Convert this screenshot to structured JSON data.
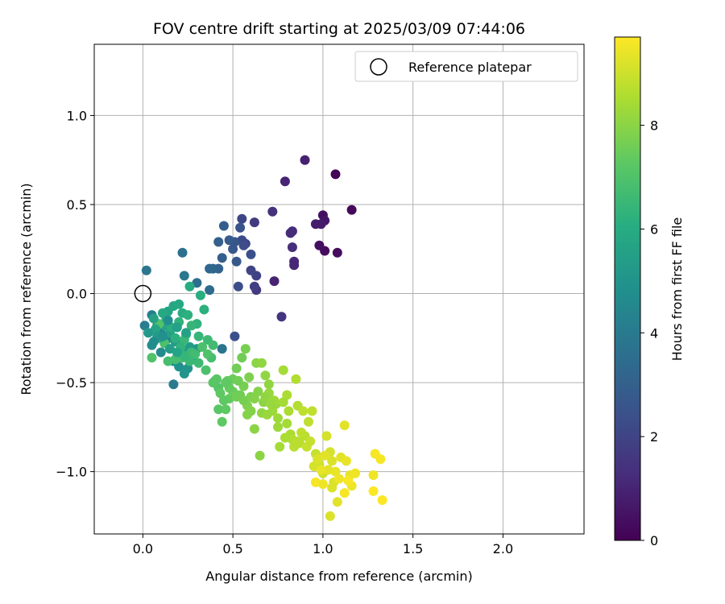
{
  "chart_data": {
    "type": "scatter",
    "title": "FOV centre drift starting at 2025/03/09 07:44:06",
    "xlabel": "Angular distance from reference (arcmin)",
    "ylabel": "Rotation from reference (arcmin)",
    "xlim": [
      -0.27,
      2.45
    ],
    "ylim": [
      -1.35,
      1.4
    ],
    "x_ticks": [
      0.0,
      0.5,
      1.0,
      1.5,
      2.0
    ],
    "x_tick_labels": [
      "0.0",
      "0.5",
      "1.0",
      "1.5",
      "2.0"
    ],
    "y_ticks": [
      -1.0,
      -0.5,
      0.0,
      0.5,
      1.0
    ],
    "y_tick_labels": [
      "−1.0",
      "−0.5",
      "0.0",
      "0.5",
      "1.0"
    ],
    "grid": true,
    "legend": {
      "position": "top-right",
      "entries": [
        "Reference platepar"
      ]
    },
    "reference_point": {
      "x": 0.0,
      "y": 0.0
    },
    "colorbar": {
      "label": "Hours from first FF file",
      "colormap": "viridis",
      "range": [
        0,
        9.7
      ],
      "ticks": [
        0,
        2,
        4,
        6,
        8
      ],
      "tick_labels": [
        "0",
        "2",
        "4",
        "6",
        "8"
      ]
    },
    "points": [
      [
        1.07,
        0.67,
        0.1
      ],
      [
        1.16,
        0.47,
        0.2
      ],
      [
        1.01,
        0.24,
        0.3
      ],
      [
        1.08,
        0.23,
        0.3
      ],
      [
        0.98,
        0.27,
        0.4
      ],
      [
        1.0,
        0.44,
        0.4
      ],
      [
        1.01,
        0.41,
        0.6
      ],
      [
        0.99,
        0.39,
        0.7
      ],
      [
        0.96,
        0.39,
        0.8
      ],
      [
        0.9,
        0.75,
        0.9
      ],
      [
        0.79,
        0.63,
        1.0
      ],
      [
        0.73,
        0.07,
        1.0
      ],
      [
        0.84,
        0.18,
        1.1
      ],
      [
        0.84,
        0.16,
        1.1
      ],
      [
        0.82,
        0.34,
        1.2
      ],
      [
        0.83,
        0.35,
        1.2
      ],
      [
        0.83,
        0.26,
        1.3
      ],
      [
        0.72,
        0.46,
        1.4
      ],
      [
        0.77,
        -0.13,
        1.5
      ],
      [
        0.63,
        0.02,
        1.6
      ],
      [
        0.62,
        0.4,
        1.7
      ],
      [
        0.62,
        0.04,
        1.8
      ],
      [
        0.63,
        0.1,
        1.9
      ],
      [
        0.6,
        0.13,
        2.0
      ],
      [
        0.57,
        0.28,
        2.0
      ],
      [
        0.55,
        0.42,
        2.1
      ],
      [
        0.55,
        0.3,
        2.2
      ],
      [
        0.56,
        0.27,
        2.3
      ],
      [
        0.53,
        0.04,
        2.3
      ],
      [
        0.51,
        -0.24,
        2.4
      ],
      [
        0.6,
        0.22,
        2.4
      ],
      [
        0.54,
        0.37,
        2.5
      ],
      [
        0.51,
        0.29,
        2.6
      ],
      [
        0.5,
        0.25,
        2.7
      ],
      [
        0.52,
        0.18,
        2.7
      ],
      [
        0.48,
        0.3,
        2.8
      ],
      [
        0.45,
        0.38,
        2.9
      ],
      [
        0.42,
        0.29,
        3.0
      ],
      [
        0.44,
        0.2,
        3.0
      ],
      [
        0.42,
        0.14,
        3.1
      ],
      [
        0.39,
        0.14,
        3.2
      ],
      [
        0.37,
        0.14,
        3.3
      ],
      [
        0.37,
        0.02,
        3.4
      ],
      [
        0.3,
        0.06,
        3.5
      ],
      [
        0.22,
        0.23,
        3.6
      ],
      [
        0.44,
        -0.31,
        3.7
      ],
      [
        0.02,
        0.13,
        3.8
      ],
      [
        0.23,
        0.1,
        3.9
      ],
      [
        0.17,
        -0.51,
        4.0
      ],
      [
        0.01,
        -0.18,
        4.1
      ],
      [
        0.05,
        -0.12,
        4.2
      ],
      [
        0.08,
        -0.18,
        4.3
      ],
      [
        0.1,
        -0.22,
        4.4
      ],
      [
        0.13,
        -0.26,
        4.5
      ],
      [
        0.1,
        -0.33,
        4.6
      ],
      [
        0.05,
        -0.29,
        4.7
      ],
      [
        0.17,
        -0.38,
        4.8
      ],
      [
        0.2,
        -0.41,
        4.9
      ],
      [
        0.23,
        -0.45,
        5.0
      ],
      [
        0.25,
        -0.42,
        5.0
      ],
      [
        0.28,
        -0.37,
        5.1
      ],
      [
        0.3,
        -0.31,
        5.2
      ],
      [
        0.26,
        -0.3,
        5.3
      ],
      [
        0.22,
        -0.33,
        5.3
      ],
      [
        0.18,
        -0.27,
        5.4
      ],
      [
        0.15,
        -0.22,
        5.5
      ],
      [
        0.12,
        -0.18,
        5.6
      ],
      [
        0.14,
        -0.1,
        5.7
      ],
      [
        0.17,
        -0.07,
        5.8
      ],
      [
        0.2,
        -0.06,
        5.9
      ],
      [
        0.22,
        -0.11,
        6.0
      ],
      [
        0.26,
        0.04,
        6.0
      ],
      [
        0.32,
        -0.01,
        6.1
      ],
      [
        0.34,
        -0.09,
        6.2
      ],
      [
        0.3,
        -0.17,
        6.3
      ],
      [
        0.27,
        -0.18,
        6.4
      ],
      [
        0.24,
        -0.23,
        6.5
      ],
      [
        0.23,
        -0.26,
        6.5
      ],
      [
        0.27,
        -0.33,
        6.6
      ],
      [
        0.22,
        -0.36,
        6.7
      ],
      [
        0.18,
        -0.37,
        6.8
      ],
      [
        0.14,
        -0.38,
        6.8
      ],
      [
        0.12,
        -0.28,
        6.9
      ],
      [
        0.09,
        -0.17,
        7.0
      ],
      [
        0.05,
        -0.36,
        7.0
      ],
      [
        0.2,
        -0.16,
        6.3
      ],
      [
        0.25,
        -0.12,
        6.2
      ],
      [
        0.31,
        -0.24,
        6.4
      ],
      [
        0.36,
        -0.26,
        6.6
      ],
      [
        0.38,
        -0.36,
        6.8
      ],
      [
        0.4,
        -0.49,
        7.0
      ],
      [
        0.42,
        -0.53,
        7.1
      ],
      [
        0.42,
        -0.65,
        7.2
      ],
      [
        0.44,
        -0.72,
        7.3
      ],
      [
        0.46,
        -0.65,
        7.3
      ],
      [
        0.48,
        -0.59,
        7.4
      ],
      [
        0.5,
        -0.48,
        7.5
      ],
      [
        0.52,
        -0.42,
        7.6
      ],
      [
        0.55,
        -0.36,
        7.6
      ],
      [
        0.57,
        -0.31,
        7.7
      ],
      [
        0.59,
        -0.47,
        7.8
      ],
      [
        0.58,
        -0.63,
        7.8
      ],
      [
        0.6,
        -0.66,
        7.9
      ],
      [
        0.62,
        -0.76,
        8.0
      ],
      [
        0.65,
        -0.91,
        8.0
      ],
      [
        0.63,
        -0.39,
        8.0
      ],
      [
        0.66,
        -0.39,
        8.1
      ],
      [
        0.68,
        -0.46,
        8.1
      ],
      [
        0.7,
        -0.56,
        8.2
      ],
      [
        0.72,
        -0.66,
        8.3
      ],
      [
        0.75,
        -0.7,
        8.3
      ],
      [
        0.76,
        -0.86,
        8.4
      ],
      [
        0.78,
        -0.43,
        8.4
      ],
      [
        0.8,
        -0.57,
        8.5
      ],
      [
        0.82,
        -0.79,
        8.5
      ],
      [
        0.85,
        -0.48,
        8.6
      ],
      [
        0.86,
        -0.63,
        8.6
      ],
      [
        0.87,
        -0.84,
        8.7
      ],
      [
        0.9,
        -0.8,
        8.7
      ],
      [
        0.92,
        -0.72,
        8.8
      ],
      [
        0.94,
        -0.66,
        8.8
      ],
      [
        0.96,
        -0.9,
        8.9
      ],
      [
        0.98,
        -0.96,
        9.0
      ],
      [
        1.0,
        -1.01,
        9.0
      ],
      [
        1.02,
        -0.8,
        9.1
      ],
      [
        1.04,
        -0.89,
        9.1
      ],
      [
        1.05,
        -1.09,
        9.2
      ],
      [
        1.06,
        -1.06,
        9.2
      ],
      [
        1.08,
        -1.17,
        9.3
      ],
      [
        1.1,
        -0.92,
        9.3
      ],
      [
        1.12,
        -0.74,
        9.3
      ],
      [
        1.13,
        -0.94,
        9.4
      ],
      [
        1.15,
        -1.02,
        9.4
      ],
      [
        1.16,
        -1.08,
        9.5
      ],
      [
        1.28,
        -1.02,
        9.5
      ],
      [
        1.29,
        -0.9,
        9.6
      ],
      [
        1.32,
        -0.93,
        9.6
      ],
      [
        1.33,
        -1.16,
        9.7
      ],
      [
        1.28,
        -1.11,
        9.7
      ],
      [
        0.96,
        -1.06,
        9.6
      ],
      [
        1.04,
        -1.25,
        9.2
      ],
      [
        1.18,
        -1.01,
        9.5
      ],
      [
        0.93,
        -0.83,
        8.9
      ],
      [
        0.88,
        -0.78,
        8.8
      ],
      [
        0.83,
        -0.82,
        8.6
      ],
      [
        0.8,
        -0.73,
        8.4
      ],
      [
        0.74,
        -0.62,
        8.2
      ],
      [
        0.7,
        -0.51,
        8.1
      ],
      [
        0.67,
        -0.61,
        8.0
      ],
      [
        0.64,
        -0.55,
        7.9
      ],
      [
        0.6,
        -0.58,
        7.8
      ],
      [
        0.56,
        -0.52,
        7.7
      ],
      [
        0.53,
        -0.49,
        7.6
      ],
      [
        0.5,
        -0.55,
        7.5
      ],
      [
        0.47,
        -0.49,
        7.4
      ],
      [
        0.43,
        -0.56,
        7.3
      ],
      [
        0.39,
        -0.5,
        7.2
      ],
      [
        0.36,
        -0.34,
        7.0
      ],
      [
        0.33,
        -0.3,
        6.9
      ],
      [
        0.29,
        -0.34,
        6.7
      ],
      [
        0.26,
        -0.38,
        6.5
      ],
      [
        0.23,
        -0.35,
        6.4
      ],
      [
        0.21,
        -0.3,
        6.3
      ],
      [
        0.18,
        -0.25,
        6.2
      ],
      [
        0.16,
        -0.19,
        6.1
      ],
      [
        0.13,
        -0.14,
        6.0
      ],
      [
        0.11,
        -0.11,
        5.9
      ],
      [
        0.09,
        -0.25,
        5.8
      ],
      [
        0.07,
        -0.2,
        5.7
      ],
      [
        0.06,
        -0.14,
        5.6
      ],
      [
        0.24,
        -0.22,
        5.6
      ],
      [
        0.19,
        -0.19,
        5.5
      ],
      [
        0.15,
        -0.31,
        5.4
      ],
      [
        0.08,
        -0.24,
        5.3
      ],
      [
        0.03,
        -0.22,
        5.2
      ],
      [
        0.11,
        -0.24,
        4.9
      ],
      [
        0.14,
        -0.15,
        4.8
      ],
      [
        0.06,
        -0.27,
        4.7
      ],
      [
        0.19,
        -0.33,
        5.7
      ],
      [
        0.31,
        -0.39,
        6.6
      ],
      [
        0.35,
        -0.43,
        6.9
      ],
      [
        0.39,
        -0.29,
        6.7
      ],
      [
        0.45,
        -0.6,
        7.3
      ],
      [
        0.54,
        -0.57,
        7.6
      ],
      [
        0.58,
        -0.68,
        7.9
      ],
      [
        0.66,
        -0.67,
        8.1
      ],
      [
        0.69,
        -0.68,
        8.2
      ],
      [
        0.73,
        -0.6,
        8.3
      ],
      [
        0.78,
        -0.61,
        8.4
      ],
      [
        0.81,
        -0.66,
        8.5
      ],
      [
        0.84,
        -0.86,
        8.7
      ],
      [
        0.91,
        -0.86,
        8.9
      ],
      [
        0.95,
        -0.97,
        9.1
      ],
      [
        0.97,
        -0.93,
        9.2
      ],
      [
        1.01,
        -0.91,
        9.3
      ],
      [
        1.03,
        -0.99,
        9.3
      ],
      [
        1.07,
        -1.0,
        9.4
      ],
      [
        1.09,
        -1.04,
        9.5
      ],
      [
        1.12,
        -1.12,
        9.6
      ],
      [
        1.14,
        -1.05,
        9.6
      ],
      [
        0.99,
        -0.99,
        9.4
      ],
      [
        1.0,
        -1.07,
        9.5
      ],
      [
        1.05,
        -0.94,
        9.2
      ],
      [
        0.89,
        -0.66,
        8.8
      ],
      [
        0.86,
        -0.83,
        8.7
      ],
      [
        0.79,
        -0.81,
        8.5
      ],
      [
        0.75,
        -0.75,
        8.3
      ],
      [
        0.71,
        -0.62,
        8.2
      ],
      [
        0.68,
        -0.58,
        8.1
      ],
      [
        0.62,
        -0.59,
        7.9
      ],
      [
        0.56,
        -0.6,
        7.7
      ],
      [
        0.52,
        -0.58,
        7.6
      ],
      [
        0.48,
        -0.53,
        7.4
      ],
      [
        0.46,
        -0.5,
        7.3
      ],
      [
        0.41,
        -0.48,
        7.2
      ]
    ]
  }
}
